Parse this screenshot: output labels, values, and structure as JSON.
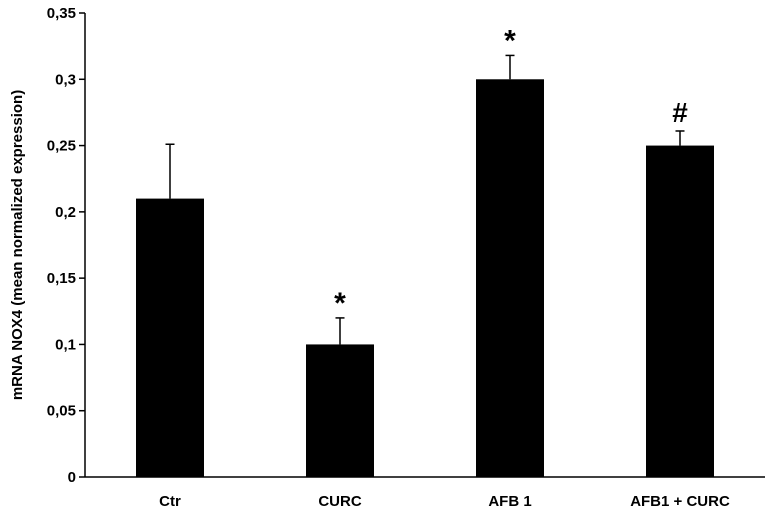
{
  "chart_data": {
    "type": "bar",
    "categories": [
      "Ctr",
      "CURC",
      "AFB 1",
      "AFB1 + CURC"
    ],
    "values": [
      0.21,
      0.1,
      0.3,
      0.25
    ],
    "error_upper": [
      0.251,
      0.12,
      0.318,
      0.261
    ],
    "annotations": [
      "",
      "*",
      "*",
      "#"
    ],
    "title": "",
    "xlabel": "",
    "ylabel": "mRNA NOX4 (mean normalized expression)",
    "ylim": [
      0,
      0.35
    ],
    "yticks": [
      0,
      0.05,
      0.1,
      0.15,
      0.2,
      0.25,
      0.3,
      0.35
    ],
    "ytick_labels": [
      "0",
      "0,05",
      "0,1",
      "0,15",
      "0,2",
      "0,25",
      "0,3",
      "0,35"
    ],
    "bar_color": "#000000",
    "grid": false,
    "legend": "none"
  }
}
